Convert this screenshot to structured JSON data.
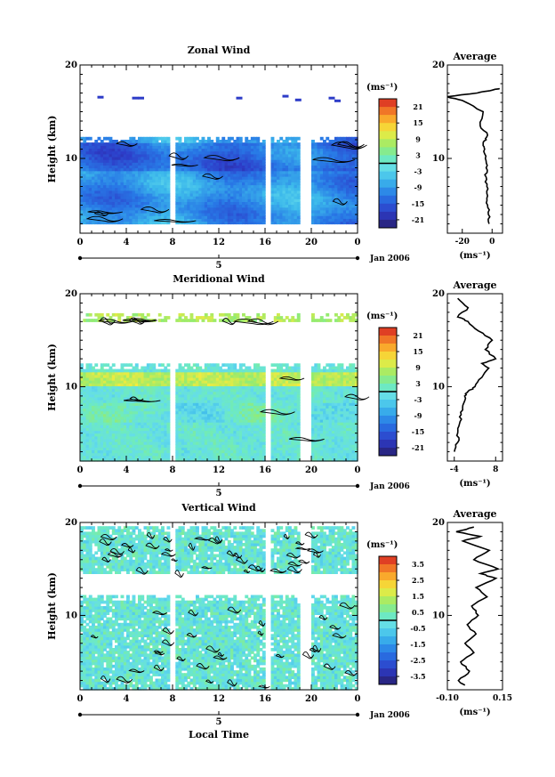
{
  "chart_data": [
    {
      "type": "heatmap",
      "title": "Zonal Wind",
      "ylabel": "Height (km)",
      "xlim": [
        0,
        24
      ],
      "ylim": [
        2,
        20
      ],
      "x_ticks": [
        "0",
        "4",
        "8",
        "12",
        "16",
        "20",
        "0"
      ],
      "y_ticks": [
        "20",
        "10"
      ],
      "date_tick": "5",
      "date_label": "Jan 2006",
      "colorbar": {
        "unit": "(ms⁻¹)",
        "ticks": [
          "21",
          "15",
          "9",
          "3",
          "-3",
          "-9",
          "-15",
          "-21"
        ],
        "range": [
          -24,
          24
        ],
        "zero_line": true
      },
      "cells_range_km": [
        3,
        12.3
      ],
      "gaps_hours": [
        [
          7.8,
          8.1
        ],
        [
          16.2,
          16.5
        ],
        [
          19.2,
          19.4
        ],
        [
          19.7,
          19.9
        ]
      ],
      "field_hint": "mostly -3 to -9 m/s, stronger westward (~ -12) near 9-11 km; sparse strong negative patches near 16-17 km",
      "profile": {
        "title": "Average",
        "xlabel": "(ms⁻¹)",
        "x_ticks": [
          "-20",
          "0"
        ],
        "xlim": [
          -30,
          7
        ],
        "y_ticks": [
          "20",
          "10"
        ],
        "values": [
          [
            -2,
            3
          ],
          [
            -2.5,
            4
          ],
          [
            -3,
            5
          ],
          [
            -3,
            6
          ],
          [
            -3.5,
            7
          ],
          [
            -4,
            8
          ],
          [
            -4,
            9
          ],
          [
            -4.5,
            10
          ],
          [
            -5,
            11
          ],
          [
            -6,
            11.5
          ],
          [
            -4,
            12
          ],
          [
            -3,
            12.5
          ],
          [
            -8,
            13.5
          ],
          [
            -6,
            15
          ],
          [
            -20,
            16.2
          ],
          [
            -30,
            16.6
          ],
          [
            -10,
            17
          ],
          [
            0,
            17.3
          ],
          [
            5,
            17.5
          ]
        ]
      }
    },
    {
      "type": "heatmap",
      "title": "Meridional Wind",
      "ylabel": "Height (km)",
      "xlim": [
        0,
        24
      ],
      "ylim": [
        2,
        20
      ],
      "x_ticks": [
        "0",
        "4",
        "8",
        "12",
        "16",
        "20",
        "0"
      ],
      "y_ticks": [
        "20",
        "10"
      ],
      "date_tick": "5",
      "date_label": "Jan 2006",
      "colorbar": {
        "unit": "(ms⁻¹)",
        "ticks": [
          "21",
          "15",
          "9",
          "3",
          "-3",
          "-9",
          "-15",
          "-21"
        ],
        "range": [
          -24,
          24
        ],
        "zero_line": true
      },
      "cells_range_km": [
        2,
        12.3
      ],
      "upper_band_km": [
        17,
        17.8
      ],
      "gaps_hours": [
        [
          7.8,
          8.1
        ],
        [
          16.2,
          16.5
        ],
        [
          19.2,
          19.4
        ],
        [
          19.7,
          19.9
        ]
      ],
      "field_hint": "mixed -3 to +3 m/s, positive (yellow) band near 10-11 km and 17 km",
      "profile": {
        "title": "Average",
        "xlabel": "(ms⁻¹)",
        "x_ticks": [
          "-4",
          "8"
        ],
        "xlim": [
          -6,
          10
        ],
        "y_ticks": [
          "20",
          "10"
        ],
        "values": [
          [
            -4,
            3
          ],
          [
            -3,
            4
          ],
          [
            -3,
            5
          ],
          [
            -2.5,
            6
          ],
          [
            -2,
            7
          ],
          [
            -1.5,
            8
          ],
          [
            -1,
            9
          ],
          [
            0,
            9.5
          ],
          [
            2,
            10
          ],
          [
            4,
            11
          ],
          [
            6,
            12
          ],
          [
            4,
            12.5
          ],
          [
            8,
            13
          ],
          [
            5,
            14
          ],
          [
            7,
            15
          ],
          [
            3,
            16
          ],
          [
            0,
            17
          ],
          [
            -3,
            17.5
          ],
          [
            0,
            18.5
          ],
          [
            -3,
            19.5
          ]
        ]
      }
    },
    {
      "type": "heatmap",
      "title": "Vertical Wind",
      "ylabel": "Height (km)",
      "xlabel": "Local Time",
      "xlim": [
        0,
        24
      ],
      "ylim": [
        2,
        20
      ],
      "x_ticks": [
        "0",
        "4",
        "8",
        "12",
        "16",
        "20",
        "0"
      ],
      "y_ticks": [
        "20",
        "10"
      ],
      "date_tick": "5",
      "date_label": "Jan 2006",
      "colorbar": {
        "unit": "(ms⁻¹)",
        "ticks": [
          "3.5",
          "2.5",
          "1.5",
          "0.5",
          "-0.5",
          "-1.5",
          "-2.5",
          "-3.5"
        ],
        "range": [
          -4,
          4
        ],
        "zero_line": true
      },
      "cells_range_km": [
        2,
        12.2
      ],
      "upper_band_km": [
        14.5,
        19.5
      ],
      "gaps_hours": [
        [
          7.8,
          8.1
        ],
        [
          16.2,
          16.5
        ],
        [
          19.2,
          19.4
        ],
        [
          19.7,
          19.9
        ]
      ],
      "field_hint": "near zero (-0.5 to 0.5 m/s) everywhere with many fine contours",
      "profile": {
        "title": "Average",
        "xlabel": "(ms⁻¹)",
        "x_ticks": [
          "-0.10",
          "0.15"
        ],
        "xlim": [
          -0.1,
          0.15
        ],
        "y_ticks": [
          "20",
          "10"
        ],
        "values": [
          [
            -0.02,
            2.5
          ],
          [
            -0.05,
            3
          ],
          [
            0,
            4
          ],
          [
            -0.04,
            5
          ],
          [
            0.02,
            6
          ],
          [
            -0.02,
            7
          ],
          [
            0.03,
            8
          ],
          [
            -0.01,
            9
          ],
          [
            0.04,
            10
          ],
          [
            0.01,
            11
          ],
          [
            0.08,
            12
          ],
          [
            0.03,
            13
          ],
          [
            0.12,
            14
          ],
          [
            0.05,
            14.5
          ],
          [
            0.13,
            15
          ],
          [
            0.02,
            16
          ],
          [
            0.09,
            17
          ],
          [
            -0.03,
            18
          ],
          [
            0.05,
            18.5
          ],
          [
            -0.06,
            19
          ],
          [
            0.02,
            19.5
          ]
        ]
      }
    }
  ]
}
